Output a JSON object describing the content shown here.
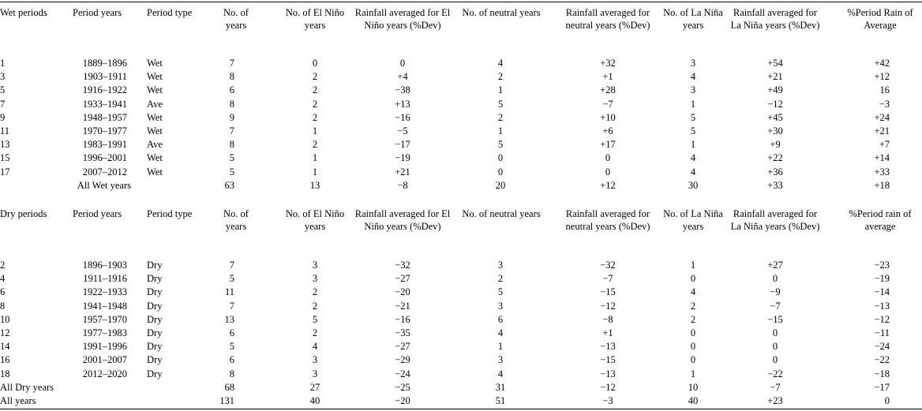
{
  "wet_header": [
    "Wet periods",
    "Period years",
    "Period type",
    "No. of years",
    "No. of El Niño years",
    "Rainfall averaged for El Niño years (%Dev)",
    "No. of neutral years",
    "Rainfall averaged for neutral years (%Dev)",
    "No. of La Niña years",
    "Rainfall averaged for La Niña years (%Dev)",
    "%Period Rain of Average"
  ],
  "wet_rows": [
    [
      "1",
      "1889–1896",
      "Wet",
      "7",
      "0",
      "0",
      "4",
      "+32",
      "3",
      "+54",
      "+42"
    ],
    [
      "3",
      "1903–1911",
      "Wet",
      "8",
      "2",
      "+4",
      "2",
      "+1",
      "4",
      "+21",
      "+12"
    ],
    [
      "5",
      "1916–1922",
      "Wet",
      "6",
      "2",
      "−38",
      "1",
      "+28",
      "3",
      "+49",
      "16"
    ],
    [
      "7",
      "1933–1941",
      "Ave",
      "8",
      "2",
      "+13",
      "5",
      "−7",
      "1",
      "−12",
      "−3"
    ],
    [
      "9",
      "1948–1957",
      "Wet",
      "9",
      "2",
      "−16",
      "2",
      "+10",
      "5",
      "+45",
      "+24"
    ],
    [
      "11",
      "1970–1977",
      "Wet",
      "7",
      "1",
      "−5",
      "1",
      "+6",
      "5",
      "+30",
      "+21"
    ],
    [
      "13",
      "1983–1991",
      "Ave",
      "8",
      "2",
      "−17",
      "5",
      "+17",
      "1",
      "+9",
      "+7"
    ],
    [
      "15",
      "1996–2001",
      "Wet",
      "5",
      "1",
      "−19",
      "0",
      "0",
      "4",
      "+22",
      "+14"
    ],
    [
      "17",
      "2007–2012",
      "Wet",
      "5",
      "1",
      "+21",
      "0",
      "0",
      "4",
      "+36",
      "+33"
    ],
    [
      "",
      "All Wet years",
      "",
      "63",
      "13",
      "−8",
      "20",
      "+12",
      "30",
      "+33",
      "+18"
    ]
  ],
  "dry_header": [
    "Dry periods",
    "Period years",
    "Period type",
    "No. of years",
    "No. of El Niño years",
    "Rainfall averaged for El Niño years (%Dev)",
    "No. of neutral years",
    "Rainfall averaged for neutral years (%Dev)",
    "No. of La Niña years",
    "Rainfall averaged for La Niña years (%Dev)",
    "%Period rain of average"
  ],
  "dry_rows": [
    [
      "2",
      "1896–1903",
      "Dry",
      "7",
      "3",
      "−32",
      "3",
      "−32",
      "1",
      "+27",
      "−23"
    ],
    [
      "4",
      "1911–1916",
      "Dry",
      "5",
      "3",
      "−27",
      "2",
      "−7",
      "0",
      "0",
      "−19"
    ],
    [
      "6",
      "1922–1933",
      "Dry",
      "11",
      "2",
      "−20",
      "5",
      "−15",
      "4",
      "−9",
      "−14"
    ],
    [
      "8",
      "1941–1948",
      "Dry",
      "7",
      "2",
      "−21",
      "3",
      "−12",
      "2",
      "−7",
      "−13"
    ],
    [
      "10",
      "1957–1970",
      "Dry",
      "13",
      "5",
      "−16",
      "6",
      "−8",
      "2",
      "−15",
      "−12"
    ],
    [
      "12",
      "1977–1983",
      "Dry",
      "6",
      "2",
      "−35",
      "4",
      "+1",
      "0",
      "0",
      "−11"
    ],
    [
      "14",
      "1991–1996",
      "Dry",
      "5",
      "4",
      "−27",
      "1",
      "−13",
      "0",
      "0",
      "−24"
    ],
    [
      "16",
      "2001–2007",
      "Dry",
      "6",
      "3",
      "−29",
      "3",
      "−15",
      "0",
      "0",
      "−22"
    ],
    [
      "18",
      "2012–2020",
      "Dry",
      "8",
      "3",
      "−24",
      "4",
      "−13",
      "1",
      "−22",
      "−18"
    ],
    [
      "All Dry years",
      "",
      "",
      "68",
      "27",
      "−25",
      "31",
      "−12",
      "10",
      "−7",
      "−17"
    ],
    [
      "All years",
      "",
      "",
      "131",
      "40",
      "−20",
      "51",
      "−3",
      "40",
      "+23",
      "0"
    ]
  ]
}
